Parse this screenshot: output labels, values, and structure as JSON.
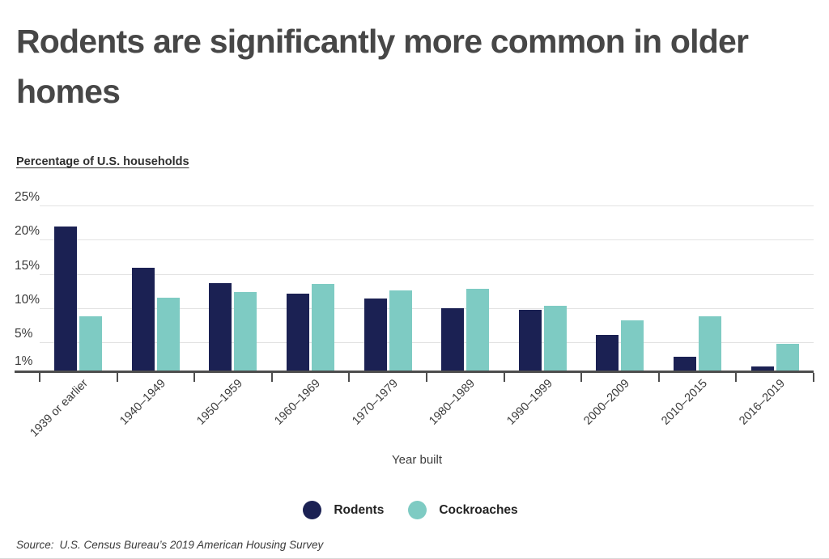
{
  "header": {
    "title": "Rodents are significantly more common in older homes",
    "subtitle": "Percentage of U.S. households"
  },
  "chart_data": {
    "type": "bar",
    "categories": [
      "1939 or earlier",
      "1940–1949",
      "1950–1959",
      "1960–1969",
      "1970–1979",
      "1980–1989",
      "1990–1999",
      "2000–2009",
      "2010–2015",
      "2016–2019"
    ],
    "series": [
      {
        "name": "Rodents",
        "color": "#1b2153",
        "values": [
          22.0,
          16.0,
          13.8,
          12.2,
          11.5,
          10.1,
          9.9,
          6.2,
          3.0,
          1.6
        ]
      },
      {
        "name": "Cockroaches",
        "color": "#7ecbc3",
        "values": [
          8.9,
          11.7,
          12.5,
          13.6,
          12.7,
          12.9,
          10.5,
          8.3,
          8.9,
          4.9
        ]
      }
    ],
    "title": "Rodents are significantly more common in older homes",
    "xlabel": "Year built",
    "ylabel": "Percentage of U.S. households",
    "y_ticks": [
      "1%",
      "5%",
      "10%",
      "15%",
      "20%",
      "25%"
    ],
    "y_tick_values": [
      1,
      5,
      10,
      15,
      20,
      25
    ],
    "ylim": [
      1,
      27.6
    ],
    "grid": true,
    "legend_position": "bottom"
  },
  "legend": {
    "items": [
      {
        "label": "Rodents",
        "color": "#1b2153"
      },
      {
        "label": "Cockroaches",
        "color": "#7ecbc3"
      }
    ]
  },
  "source": {
    "label": "Source:",
    "text": "U.S. Census Bureau’s 2019 American Housing Survey"
  }
}
